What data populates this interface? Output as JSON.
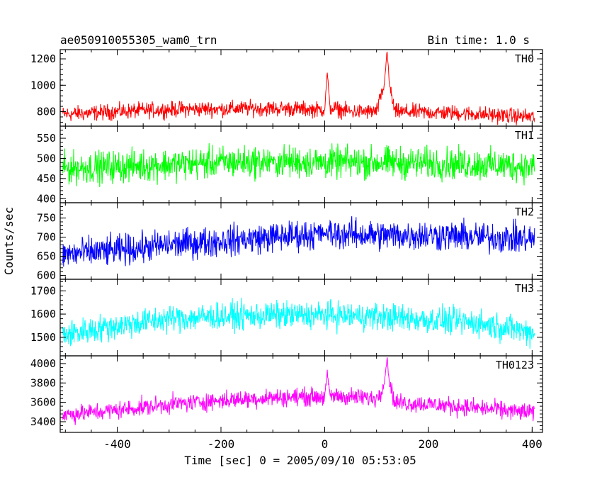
{
  "chart_data": {
    "type": "line",
    "title": "ae050910055305_wam0_trn",
    "bin_time_label": "Bin time: 1.0 s",
    "xlabel": "Time [sec] 0 = 2005/09/10 05:53:05",
    "ylabel": "Counts/sec",
    "xlim": [
      -510,
      420
    ],
    "x_ticks": [
      -400,
      -200,
      0,
      200,
      400
    ],
    "grid": false,
    "panels": [
      {
        "name": "TH0",
        "color": "#ff0000",
        "ylim": [
          690,
          1270
        ],
        "y_ticks": [
          800,
          1000,
          1200
        ],
        "series": [
          {
            "x": -505,
            "y": 780
          },
          {
            "x": -450,
            "y": 790
          },
          {
            "x": -400,
            "y": 800
          },
          {
            "x": -350,
            "y": 810
          },
          {
            "x": -300,
            "y": 815
          },
          {
            "x": -250,
            "y": 820
          },
          {
            "x": -200,
            "y": 820
          },
          {
            "x": -150,
            "y": 825
          },
          {
            "x": -100,
            "y": 825
          },
          {
            "x": -50,
            "y": 820
          },
          {
            "x": 0,
            "y": 815
          },
          {
            "x": 5,
            "y": 1100
          },
          {
            "x": 10,
            "y": 830
          },
          {
            "x": 50,
            "y": 800
          },
          {
            "x": 100,
            "y": 800
          },
          {
            "x": 115,
            "y": 1000
          },
          {
            "x": 120,
            "y": 1270
          },
          {
            "x": 125,
            "y": 1000
          },
          {
            "x": 135,
            "y": 800
          },
          {
            "x": 200,
            "y": 795
          },
          {
            "x": 250,
            "y": 790
          },
          {
            "x": 300,
            "y": 780
          },
          {
            "x": 350,
            "y": 770
          },
          {
            "x": 405,
            "y": 760
          }
        ],
        "noise": 45
      },
      {
        "name": "TH1",
        "color": "#00ff00",
        "ylim": [
          390,
          580
        ],
        "y_ticks": [
          400,
          450,
          500,
          550
        ],
        "series": [
          {
            "x": -505,
            "y": 475
          },
          {
            "x": -400,
            "y": 480
          },
          {
            "x": -300,
            "y": 485
          },
          {
            "x": -200,
            "y": 490
          },
          {
            "x": -100,
            "y": 492
          },
          {
            "x": 0,
            "y": 490
          },
          {
            "x": 100,
            "y": 490
          },
          {
            "x": 200,
            "y": 488
          },
          {
            "x": 300,
            "y": 485
          },
          {
            "x": 405,
            "y": 480
          }
        ],
        "noise": 30
      },
      {
        "name": "TH2",
        "color": "#0000ff",
        "ylim": [
          590,
          790
        ],
        "y_ticks": [
          600,
          650,
          700,
          750
        ],
        "series": [
          {
            "x": -505,
            "y": 655
          },
          {
            "x": -400,
            "y": 665
          },
          {
            "x": -300,
            "y": 680
          },
          {
            "x": -200,
            "y": 690
          },
          {
            "x": -100,
            "y": 700
          },
          {
            "x": 0,
            "y": 710
          },
          {
            "x": 100,
            "y": 705
          },
          {
            "x": 200,
            "y": 705
          },
          {
            "x": 300,
            "y": 700
          },
          {
            "x": 405,
            "y": 695
          }
        ],
        "noise": 30
      },
      {
        "name": "TH3",
        "color": "#00ffff",
        "ylim": [
          1420,
          1750
        ],
        "y_ticks": [
          1500,
          1600,
          1700
        ],
        "series": [
          {
            "x": -505,
            "y": 1510
          },
          {
            "x": -400,
            "y": 1550
          },
          {
            "x": -300,
            "y": 1580
          },
          {
            "x": -200,
            "y": 1590
          },
          {
            "x": -100,
            "y": 1595
          },
          {
            "x": 0,
            "y": 1595
          },
          {
            "x": 100,
            "y": 1590
          },
          {
            "x": 200,
            "y": 1575
          },
          {
            "x": 300,
            "y": 1560
          },
          {
            "x": 405,
            "y": 1520
          }
        ],
        "noise": 45
      },
      {
        "name": "TH0123",
        "color": "#ff00ff",
        "ylim": [
          3290,
          4080
        ],
        "y_ticks": [
          3400,
          3600,
          3800,
          4000
        ],
        "series": [
          {
            "x": -505,
            "y": 3470
          },
          {
            "x": -400,
            "y": 3520
          },
          {
            "x": -300,
            "y": 3580
          },
          {
            "x": -200,
            "y": 3620
          },
          {
            "x": -100,
            "y": 3650
          },
          {
            "x": 0,
            "y": 3660
          },
          {
            "x": 5,
            "y": 3900
          },
          {
            "x": 10,
            "y": 3670
          },
          {
            "x": 100,
            "y": 3640
          },
          {
            "x": 115,
            "y": 3800
          },
          {
            "x": 120,
            "y": 4060
          },
          {
            "x": 125,
            "y": 3800
          },
          {
            "x": 135,
            "y": 3600
          },
          {
            "x": 200,
            "y": 3580
          },
          {
            "x": 300,
            "y": 3540
          },
          {
            "x": 405,
            "y": 3490
          }
        ],
        "noise": 70
      }
    ]
  }
}
